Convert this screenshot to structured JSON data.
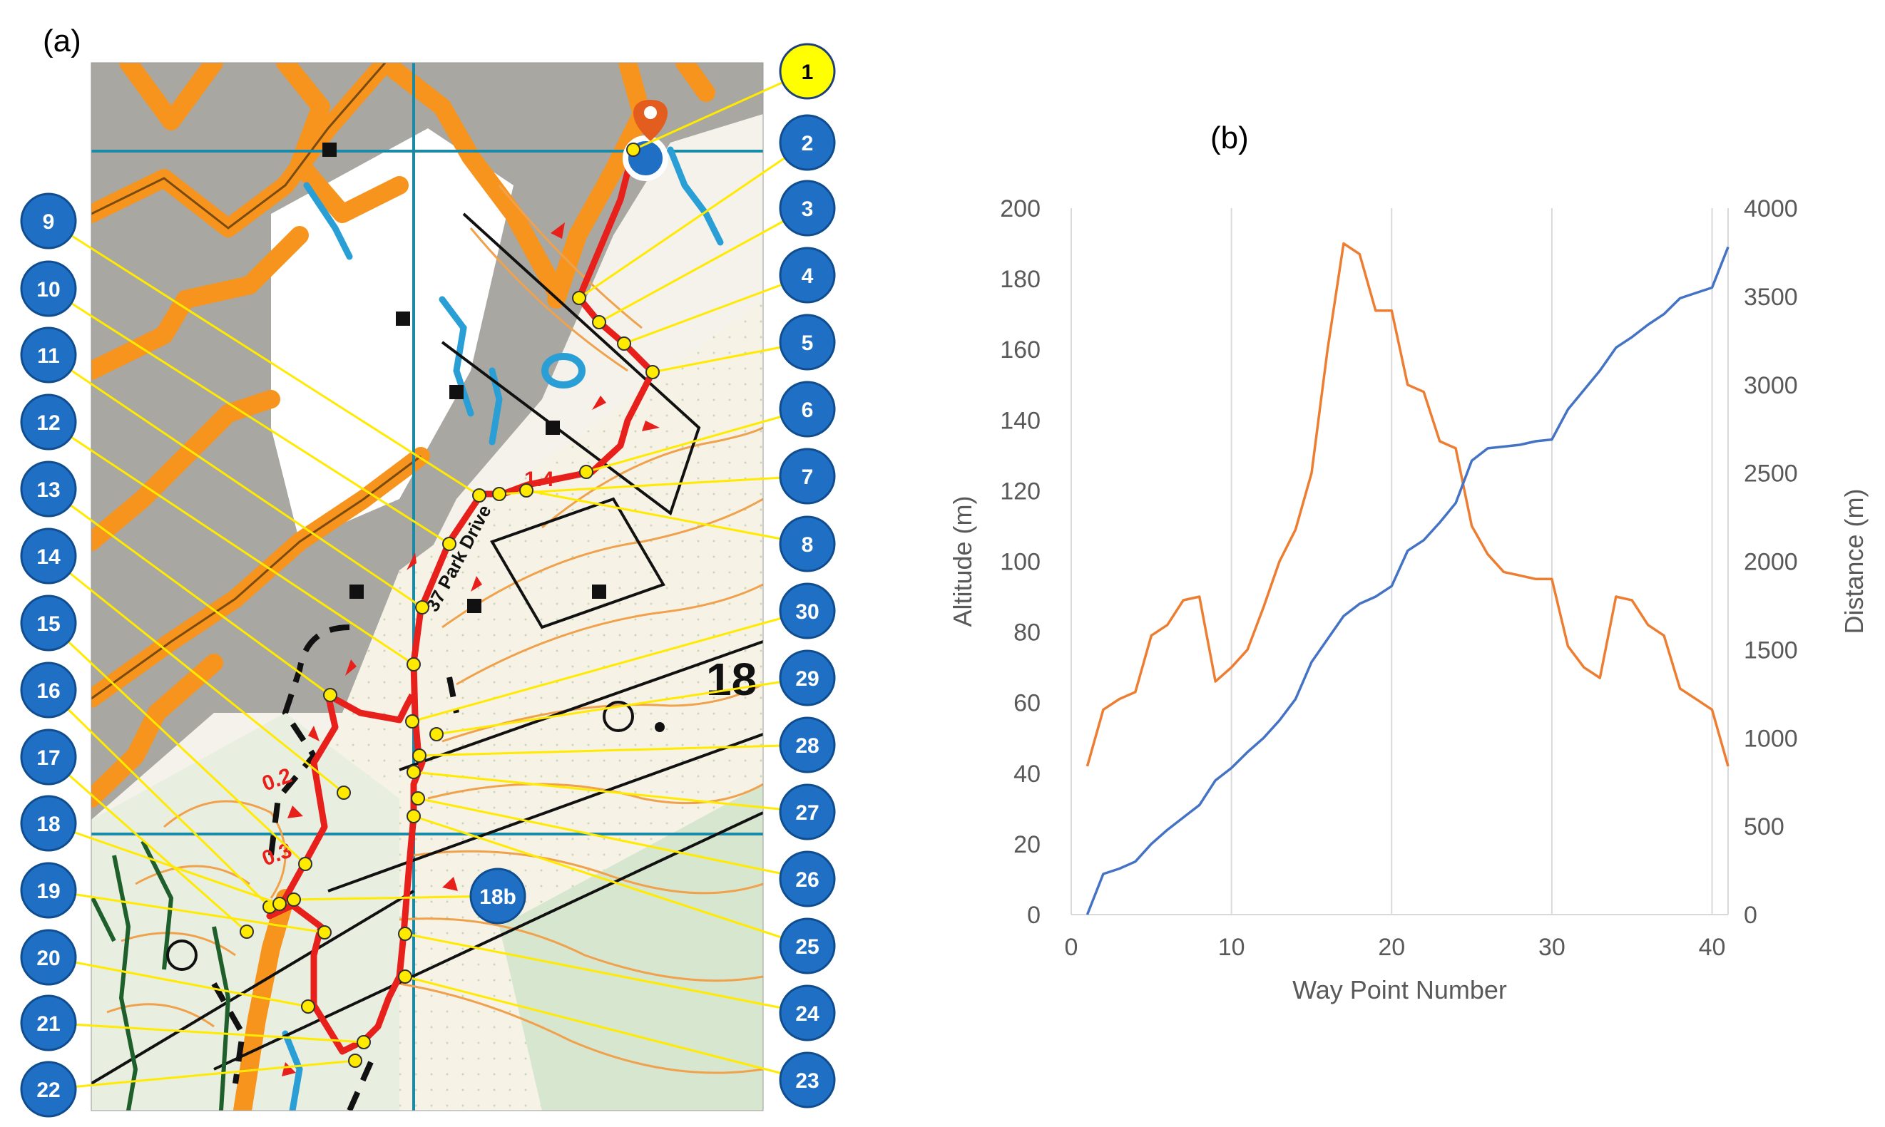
{
  "panel_a": {
    "label": "(a)",
    "street_label": "37 Park Drive",
    "leg_distances": [
      "1.4",
      "0.2",
      "0.3"
    ],
    "map_number": "18",
    "highlight_color": "#ffff00",
    "badge_color": "#1f6fc5",
    "waypoints_left": [
      "9",
      "10",
      "11",
      "12",
      "13",
      "14",
      "15",
      "16",
      "17",
      "18",
      "19",
      "20",
      "21",
      "22"
    ],
    "waypoints_right": [
      "1",
      "2",
      "3",
      "4",
      "5",
      "6",
      "7",
      "8",
      "30",
      "29",
      "28",
      "27",
      "26",
      "25",
      "24",
      "23"
    ],
    "extra_waypoint": "18b"
  },
  "panel_b": {
    "label": "(b)"
  },
  "chart_data": {
    "type": "line",
    "xlabel": "Way Point Number",
    "ylabel": "Altitude (m)",
    "y2label": "Distance (m)",
    "xlim": [
      0,
      41
    ],
    "ylim": [
      0,
      200
    ],
    "y2lim": [
      0,
      4000
    ],
    "xticks": [
      "0",
      "10",
      "20",
      "30",
      "40"
    ],
    "yticks": [
      "0",
      "20",
      "40",
      "60",
      "80",
      "100",
      "120",
      "140",
      "160",
      "180",
      "200"
    ],
    "y2ticks": [
      "0",
      "500",
      "1000",
      "1500",
      "2000",
      "2500",
      "3000",
      "3500",
      "4000"
    ],
    "grid": "vertical",
    "series": [
      {
        "axis": "left",
        "color": "#ed7d31",
        "x": [
          1,
          2,
          3,
          4,
          5,
          6,
          7,
          8,
          9,
          10,
          11,
          12,
          13,
          14,
          15,
          16,
          17,
          18,
          19,
          20,
          21,
          22,
          23,
          24,
          25,
          26,
          27,
          28,
          29,
          30,
          31,
          32,
          33,
          34,
          35,
          36,
          37,
          38,
          39,
          40,
          41
        ],
        "values": [
          42,
          58,
          61,
          63,
          79,
          82,
          89,
          90,
          66,
          70,
          75,
          87,
          100,
          109,
          125,
          160,
          190,
          187,
          171,
          171,
          150,
          148,
          134,
          132,
          110,
          102,
          97,
          96,
          95,
          95,
          76,
          70,
          67,
          90,
          89,
          82,
          79,
          64,
          61,
          58,
          42
        ]
      },
      {
        "axis": "right",
        "color": "#4472c4",
        "x": [
          1,
          2,
          3,
          4,
          5,
          6,
          7,
          8,
          9,
          10,
          11,
          12,
          13,
          14,
          15,
          16,
          17,
          18,
          19,
          20,
          21,
          22,
          23,
          24,
          25,
          26,
          27,
          28,
          29,
          30,
          31,
          32,
          33,
          34,
          35,
          36,
          37,
          38,
          39,
          40,
          41
        ],
        "values": [
          0,
          230,
          260,
          300,
          400,
          480,
          550,
          620,
          760,
          830,
          920,
          1000,
          1100,
          1220,
          1430,
          1560,
          1690,
          1760,
          1800,
          1860,
          2060,
          2120,
          2220,
          2330,
          2570,
          2640,
          2650,
          2660,
          2680,
          2690,
          2860,
          2970,
          3080,
          3210,
          3270,
          3340,
          3400,
          3490,
          3520,
          3550,
          3780
        ]
      }
    ]
  }
}
